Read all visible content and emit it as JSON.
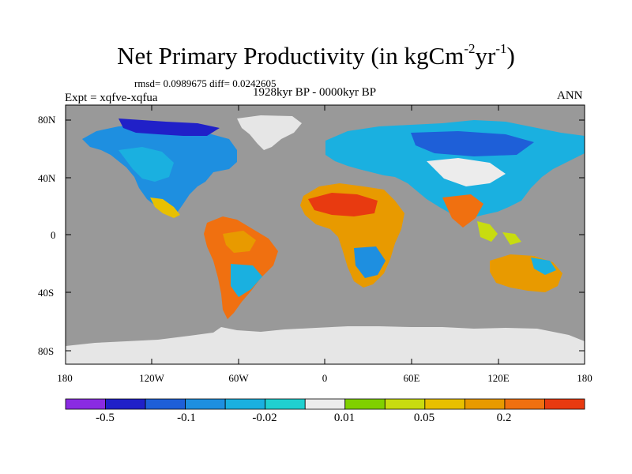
{
  "title": {
    "main": "Net Primary Productivity (in kgCm",
    "exp1": "-2",
    "mid": "yr",
    "exp2": "-1",
    "close": ")"
  },
  "stats": "rmsd= 0.0989675 diff= 0.0242605",
  "period": "1928kyr BP - 0000kyr BP",
  "experiment": "Expt = xqfve-xqfua",
  "season": "ANN",
  "y_axis": {
    "labels": [
      "80N",
      "40N",
      "0",
      "40S",
      "80S"
    ]
  },
  "x_axis": {
    "labels": [
      "180",
      "120W",
      "60W",
      "0",
      "60E",
      "120E",
      "180"
    ]
  },
  "colorbar": {
    "colors": [
      "#8a2be2",
      "#2020c8",
      "#1e5fd8",
      "#1e8fe0",
      "#1ab0e0",
      "#20d0d0",
      "#ececec",
      "#80d000",
      "#c8dc10",
      "#e8c000",
      "#e89a00",
      "#f07010",
      "#e83a10"
    ],
    "labels": [
      "-0.5",
      "-0.1",
      "-0.02",
      "0.01",
      "0.05",
      "0.2"
    ]
  },
  "colors": {
    "ocean": "#999999",
    "missing": "#e6e6e6"
  }
}
